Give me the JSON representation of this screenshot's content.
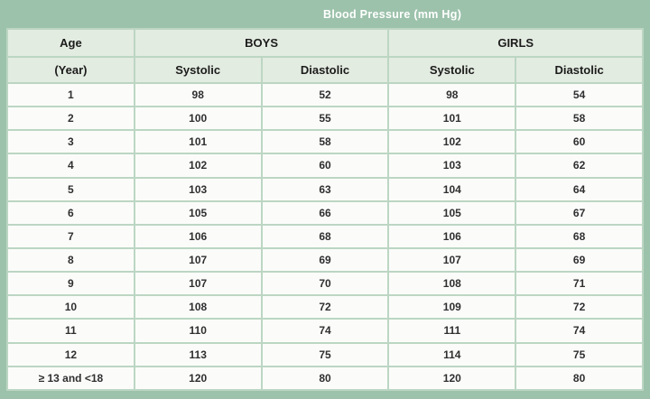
{
  "banner": {
    "title": "Blood Pressure (mm Hg)"
  },
  "table": {
    "group_headers": {
      "age": "Age",
      "boys": "BOYS",
      "girls": "GIRLS"
    },
    "sub_headers": {
      "age_unit": "(Year)",
      "boys_systolic": "Systolic",
      "boys_diastolic": "Diastolic",
      "girls_systolic": "Systolic",
      "girls_diastolic": "Diastolic"
    },
    "rows": [
      [
        "1",
        "98",
        "52",
        "98",
        "54"
      ],
      [
        "2",
        "100",
        "55",
        "101",
        "58"
      ],
      [
        "3",
        "101",
        "58",
        "102",
        "60"
      ],
      [
        "4",
        "102",
        "60",
        "103",
        "62"
      ],
      [
        "5",
        "103",
        "63",
        "104",
        "64"
      ],
      [
        "6",
        "105",
        "66",
        "105",
        "67"
      ],
      [
        "7",
        "106",
        "68",
        "106",
        "68"
      ],
      [
        "8",
        "107",
        "69",
        "107",
        "69"
      ],
      [
        "9",
        "107",
        "70",
        "108",
        "71"
      ],
      [
        "10",
        "108",
        "72",
        "109",
        "72"
      ],
      [
        "11",
        "110",
        "74",
        "111",
        "74"
      ],
      [
        "12",
        "113",
        "75",
        "114",
        "75"
      ],
      [
        "≥ 13 and <18",
        "120",
        "80",
        "120",
        "80"
      ]
    ]
  },
  "chart_data": {
    "type": "table",
    "title": "Blood Pressure (mm Hg)",
    "column_groups": [
      "Age",
      "BOYS",
      "BOYS",
      "GIRLS",
      "GIRLS"
    ],
    "columns": [
      "Age (Year)",
      "Boys Systolic",
      "Boys Diastolic",
      "Girls Systolic",
      "Girls Diastolic"
    ],
    "rows": [
      [
        "1",
        98,
        52,
        98,
        54
      ],
      [
        "2",
        100,
        55,
        101,
        58
      ],
      [
        "3",
        101,
        58,
        102,
        60
      ],
      [
        "4",
        102,
        60,
        103,
        62
      ],
      [
        "5",
        103,
        63,
        104,
        64
      ],
      [
        "6",
        105,
        66,
        105,
        67
      ],
      [
        "7",
        106,
        68,
        106,
        68
      ],
      [
        "8",
        107,
        69,
        107,
        69
      ],
      [
        "9",
        107,
        70,
        108,
        71
      ],
      [
        "10",
        108,
        72,
        109,
        72
      ],
      [
        "11",
        110,
        74,
        111,
        74
      ],
      [
        "12",
        113,
        75,
        114,
        75
      ],
      [
        "≥ 13 and <18",
        120,
        80,
        120,
        80
      ]
    ]
  },
  "colors": {
    "background_green": "#9cc2ab",
    "grid_green": "#bcd6c3",
    "header_cell_bg": "#e3ece1",
    "data_cell_bg": "#fbfcfa",
    "title_text": "#ffffff",
    "cell_text": "#2f2f2f"
  }
}
